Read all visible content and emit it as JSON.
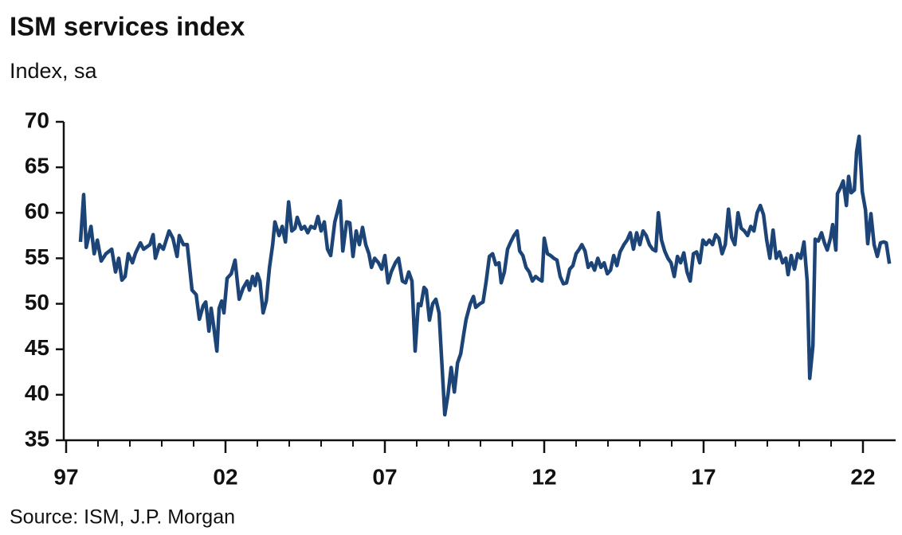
{
  "chart_data": {
    "type": "line",
    "title": "ISM services index",
    "subtitle": "Index, sa",
    "source": "Source: ISM, J.P. Morgan",
    "xlim": [
      1997,
      2023
    ],
    "ylim": [
      35,
      70
    ],
    "yticks": [
      35,
      40,
      45,
      50,
      55,
      60,
      65,
      70
    ],
    "xticks": [
      {
        "value": 1997,
        "label": "97"
      },
      {
        "value": 2002,
        "label": "02"
      },
      {
        "value": 2007,
        "label": "07"
      },
      {
        "value": 2012,
        "label": "12"
      },
      {
        "value": 2017,
        "label": "17"
      },
      {
        "value": 2022,
        "label": "22"
      }
    ],
    "x_minor_ticks": [
      1998,
      1999,
      2000,
      2001,
      2003,
      2004,
      2005,
      2006,
      2008,
      2009,
      2010,
      2011,
      2013,
      2014,
      2015,
      2016,
      2018,
      2019,
      2020,
      2021
    ],
    "series": [
      {
        "name": "ISM services index",
        "color": "#1d4477",
        "x": [
          1997.45,
          1997.55,
          1997.63,
          1997.78,
          1997.88,
          1997.98,
          1998.1,
          1998.25,
          1998.43,
          1998.55,
          1998.65,
          1998.75,
          1998.85,
          1998.95,
          1999.08,
          1999.18,
          1999.33,
          1999.43,
          1999.63,
          1999.73,
          1999.8,
          1999.93,
          2000.05,
          2000.23,
          2000.35,
          2000.48,
          2000.55,
          2000.68,
          2000.8,
          2000.95,
          2001.08,
          2001.18,
          2001.3,
          2001.38,
          2001.48,
          2001.55,
          2001.63,
          2001.73,
          2001.8,
          2001.88,
          2001.95,
          2002.05,
          2002.18,
          2002.3,
          2002.43,
          2002.55,
          2002.68,
          2002.75,
          2002.85,
          2002.93,
          2003.0,
          2003.08,
          2003.18,
          2003.28,
          2003.38,
          2003.48,
          2003.55,
          2003.68,
          2003.78,
          2003.88,
          2003.98,
          2004.08,
          2004.18,
          2004.25,
          2004.38,
          2004.48,
          2004.58,
          2004.68,
          2004.8,
          2004.9,
          2005.0,
          2005.1,
          2005.2,
          2005.3,
          2005.43,
          2005.6,
          2005.68,
          2005.8,
          2005.9,
          2006.0,
          2006.1,
          2006.2,
          2006.3,
          2006.4,
          2006.5,
          2006.58,
          2006.68,
          2006.8,
          2006.9,
          2007.0,
          2007.1,
          2007.2,
          2007.33,
          2007.43,
          2007.55,
          2007.65,
          2007.75,
          2007.85,
          2007.95,
          2008.05,
          2008.13,
          2008.23,
          2008.3,
          2008.4,
          2008.5,
          2008.6,
          2008.7,
          2008.78,
          2008.88,
          2008.98,
          2009.08,
          2009.18,
          2009.28,
          2009.38,
          2009.48,
          2009.55,
          2009.68,
          2009.78,
          2009.85,
          2009.98,
          2010.08,
          2010.18,
          2010.28,
          2010.38,
          2010.48,
          2010.58,
          2010.65,
          2010.75,
          2010.85,
          2010.95,
          2011.05,
          2011.15,
          2011.23,
          2011.33,
          2011.43,
          2011.53,
          2011.63,
          2011.73,
          2011.83,
          2011.93,
          2012.0,
          2012.1,
          2012.2,
          2012.3,
          2012.4,
          2012.5,
          2012.6,
          2012.7,
          2012.8,
          2012.9,
          2013.0,
          2013.1,
          2013.18,
          2013.28,
          2013.38,
          2013.48,
          2013.58,
          2013.68,
          2013.78,
          2013.88,
          2013.98,
          2014.08,
          2014.18,
          2014.28,
          2014.38,
          2014.5,
          2014.6,
          2014.7,
          2014.8,
          2014.9,
          2015.0,
          2015.1,
          2015.2,
          2015.3,
          2015.4,
          2015.5,
          2015.58,
          2015.68,
          2015.78,
          2015.88,
          2015.98,
          2016.08,
          2016.18,
          2016.28,
          2016.38,
          2016.48,
          2016.58,
          2016.68,
          2016.78,
          2016.88,
          2016.98,
          2017.08,
          2017.18,
          2017.28,
          2017.38,
          2017.48,
          2017.58,
          2017.68,
          2017.78,
          2017.88,
          2017.98,
          2018.08,
          2018.18,
          2018.28,
          2018.38,
          2018.48,
          2018.58,
          2018.68,
          2018.78,
          2018.88,
          2018.98,
          2019.08,
          2019.18,
          2019.28,
          2019.38,
          2019.48,
          2019.58,
          2019.65,
          2019.75,
          2019.85,
          2019.95,
          2020.05,
          2020.15,
          2020.25,
          2020.33,
          2020.43,
          2020.5,
          2020.6,
          2020.7,
          2020.8,
          2020.88,
          2020.98,
          2021.05,
          2021.15,
          2021.2,
          2021.3,
          2021.38,
          2021.48,
          2021.55,
          2021.63,
          2021.73,
          2021.8,
          2021.88,
          2021.98,
          2022.08,
          2022.15,
          2022.25,
          2022.35,
          2022.45,
          2022.55,
          2022.65,
          2022.73,
          2022.83
        ],
        "values": [
          56.8,
          62,
          56.2,
          58.5,
          55.5,
          57,
          54.7,
          55.5,
          56,
          53.5,
          55,
          52.6,
          53,
          55.5,
          54.5,
          55.6,
          56.7,
          56,
          56.5,
          57.6,
          55,
          56.5,
          56,
          58,
          57.2,
          55.2,
          57.5,
          56.5,
          56.5,
          51.5,
          51,
          48.3,
          49.8,
          50.2,
          47,
          49.5,
          47.5,
          44.8,
          49.5,
          50.3,
          49,
          52.8,
          53.3,
          54.8,
          50.5,
          51.7,
          52.5,
          51.5,
          53,
          52,
          53.3,
          52.5,
          49,
          50.3,
          54,
          56.5,
          59,
          57.5,
          58.5,
          56.8,
          61.2,
          58,
          58.3,
          59.5,
          58.2,
          58.5,
          57.8,
          58.5,
          58.3,
          59.6,
          58,
          59,
          56,
          55.3,
          59,
          61.3,
          55.8,
          59,
          58.9,
          55.2,
          58,
          56.5,
          58.4,
          56.5,
          55.5,
          54,
          55,
          54.5,
          53.8,
          55.3,
          52.3,
          53.5,
          54.5,
          55,
          52.5,
          52.3,
          53.5,
          52.5,
          44.8,
          50,
          49.8,
          51.8,
          51.5,
          48.2,
          50,
          50.5,
          49,
          44,
          37.8,
          40,
          43,
          40.3,
          43.5,
          44.5,
          46.8,
          48.3,
          50,
          50.8,
          49.6,
          50,
          50.2,
          52.5,
          55.2,
          55.5,
          54.3,
          54.5,
          52.3,
          53.5,
          56,
          56.8,
          57.5,
          58,
          55.8,
          55.3,
          54,
          53.5,
          52.5,
          53,
          52.7,
          52.5,
          57.2,
          55.5,
          55.3,
          55,
          54.8,
          53,
          52.2,
          52.3,
          53.8,
          54.2,
          55.5,
          56,
          56.5,
          55.8,
          54,
          54.5,
          53.7,
          55,
          54,
          54.5,
          53.3,
          53.7,
          55.3,
          54.2,
          55.7,
          56.5,
          57,
          57.8,
          56,
          57.8,
          56.5,
          58,
          57.5,
          56.5,
          56,
          55.8,
          60,
          57,
          55.8,
          55,
          54.5,
          53,
          55.2,
          54.5,
          55.6,
          53.5,
          52.5,
          55.5,
          55.7,
          54.5,
          57,
          56.5,
          57,
          56.5,
          57.6,
          57.2,
          55.5,
          56.5,
          60.4,
          57.3,
          56.5,
          60,
          58.3,
          58,
          57.5,
          58.5,
          58,
          60,
          60.8,
          59.8,
          57,
          55,
          58.1,
          55,
          55.7,
          54.5,
          55,
          53.2,
          55.3,
          53.8,
          55.5,
          55,
          56.8,
          52.5,
          41.8,
          45.4,
          57.1,
          56.9,
          57.8,
          56.6,
          55.9,
          57.2,
          58.7,
          55.9,
          62.1,
          62.8,
          63.5,
          60.8,
          64,
          62.2,
          62.5,
          66.7,
          68.4,
          62.3,
          60.3,
          56.6,
          59.9,
          56.5,
          55.2,
          56.7,
          56.8,
          56.7,
          54.4
        ]
      }
    ]
  }
}
